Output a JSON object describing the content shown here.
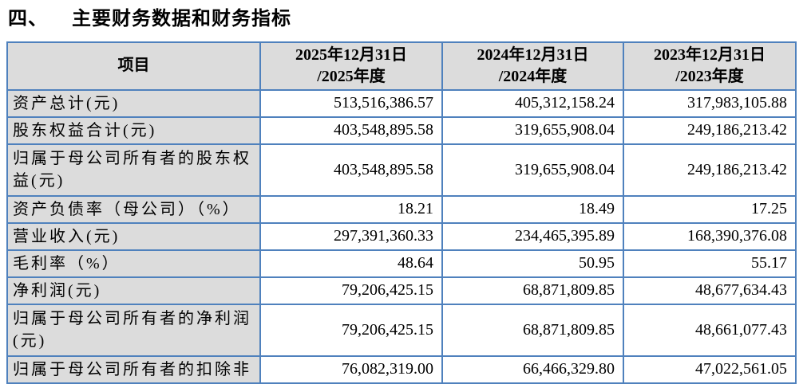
{
  "page": {
    "section_number": "四、",
    "section_title": "主要财务数据和财务指标"
  },
  "colors": {
    "table_border": "#4F81BD",
    "header_bg": "#DCDCDC"
  },
  "table": {
    "header": {
      "item": "项目",
      "col_2025": "2025年12月31日\n/2025年度",
      "col_2024": "2024年12月31日\n/2024年度",
      "col_2023": "2023年12月31日\n/2023年度"
    },
    "rows": [
      {
        "label": "资产总计(元)",
        "values": [
          "513,516,386.57",
          "405,312,158.24",
          "317,983,105.88"
        ]
      },
      {
        "label": "股东权益合计(元)",
        "values": [
          "403,548,895.58",
          "319,655,908.04",
          "249,186,213.42"
        ]
      },
      {
        "label": "归属于母公司所有者的股东权益(元)",
        "values": [
          "403,548,895.58",
          "319,655,908.04",
          "249,186,213.42"
        ]
      },
      {
        "label": "资产负债率（母公司）（%）",
        "values": [
          "18.21",
          "18.49",
          "17.25"
        ]
      },
      {
        "label": "营业收入(元)",
        "values": [
          "297,391,360.33",
          "234,465,395.89",
          "168,390,376.08"
        ]
      },
      {
        "label": "毛利率（%）",
        "values": [
          "48.64",
          "50.95",
          "55.17"
        ]
      },
      {
        "label": "净利润(元)",
        "values": [
          "79,206,425.15",
          "68,871,809.85",
          "48,677,634.43"
        ]
      },
      {
        "label": "归属于母公司所有者的净利润(元)",
        "values": [
          "79,206,425.15",
          "68,871,809.85",
          "48,661,077.43"
        ]
      },
      {
        "label": "归属于母公司所有者的扣除非",
        "values": [
          "76,082,319.00",
          "66,466,329.80",
          "47,022,561.05"
        ]
      }
    ]
  }
}
